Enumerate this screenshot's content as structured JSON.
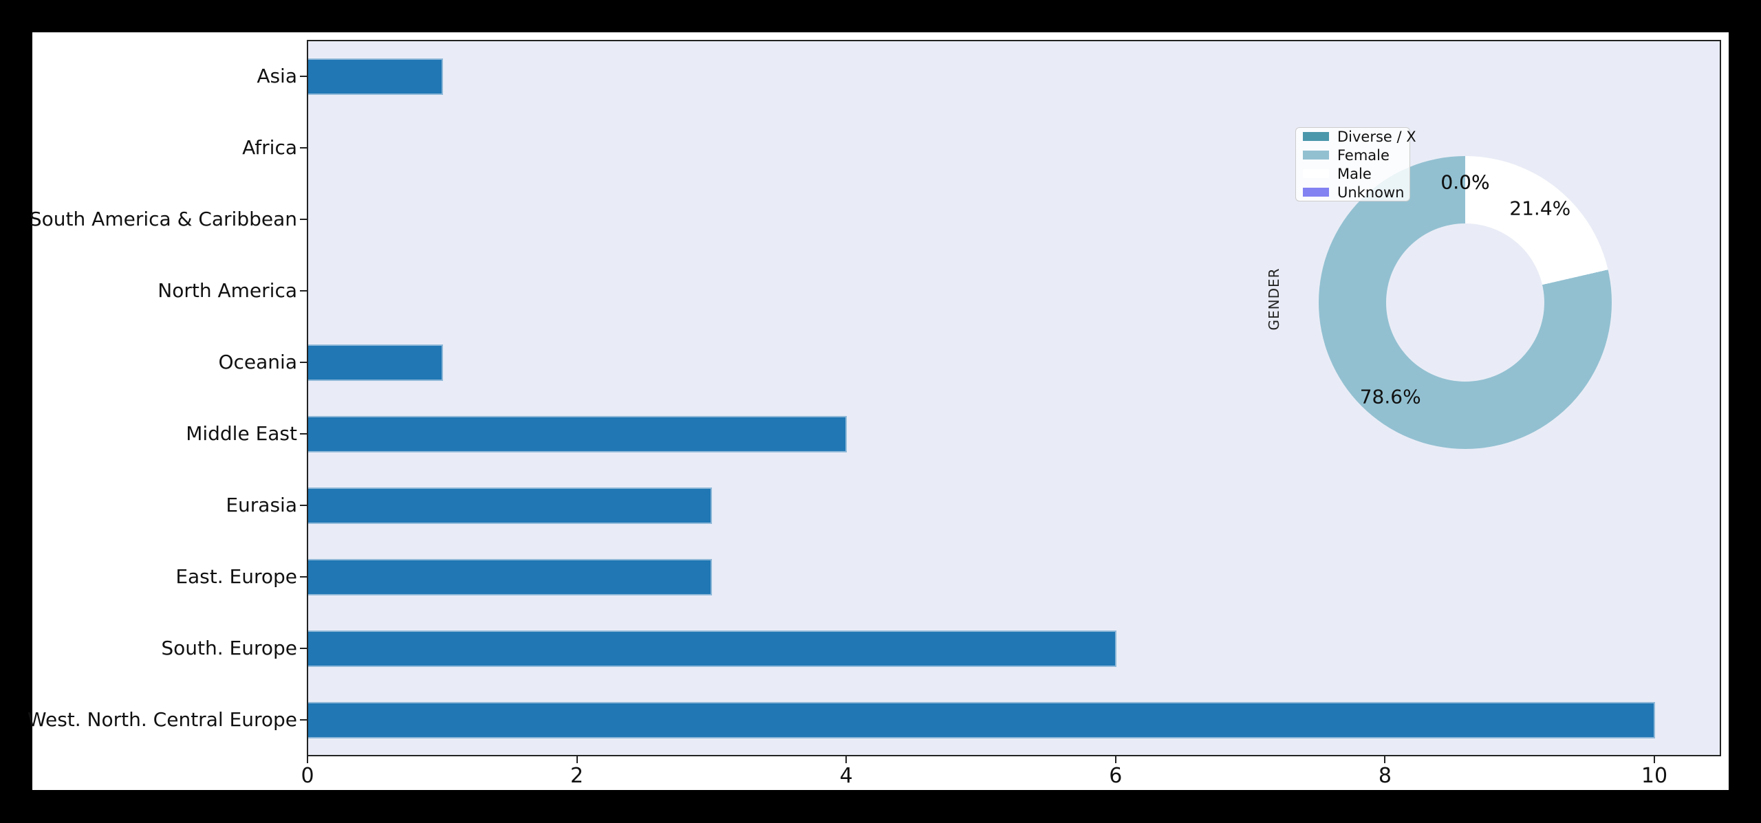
{
  "figure": {
    "frame_color": "#000000",
    "figure_bg": "#ffffff",
    "plot_bg": "#e9ecf6",
    "spine_color": "#222222",
    "text_color": "#111111"
  },
  "chart_data": [
    {
      "type": "bar",
      "orientation": "horizontal",
      "title": "",
      "xlabel": "",
      "ylabel": "",
      "categories": [
        "Asia",
        "Africa",
        "South America & Caribbean",
        "North America",
        "Oceania",
        "Middle East",
        "Eurasia",
        "East. Europe",
        "South. Europe",
        "West. North. Central Europe"
      ],
      "values": [
        1,
        0,
        0,
        0,
        1,
        4,
        3,
        3,
        6,
        10
      ],
      "bar_color": "#2077b4",
      "bar_edge_color": "#8fb8d8",
      "xticks": [
        0,
        2,
        4,
        6,
        8,
        10
      ],
      "xlim": [
        0,
        10.5
      ],
      "grid": false,
      "legend_position": "none"
    },
    {
      "type": "pie",
      "donut": true,
      "ylabel": "GENDER",
      "start_angle_deg": 90,
      "direction": "counterclockwise",
      "legend_position": "upper-left-of-inset",
      "slices": [
        {
          "label": "Diverse / X",
          "pct": 0.0,
          "pct_label": "0.0%",
          "color": "#4a97ac"
        },
        {
          "label": "Female",
          "pct": 78.6,
          "pct_label": "78.6%",
          "color": "#92c0d1"
        },
        {
          "label": "Male",
          "pct": 21.4,
          "pct_label": "21.4%",
          "color": "#ffffff"
        },
        {
          "label": "Unknown",
          "pct": 0.0,
          "pct_label": "0.0%",
          "color": "#8282f2"
        }
      ]
    }
  ]
}
